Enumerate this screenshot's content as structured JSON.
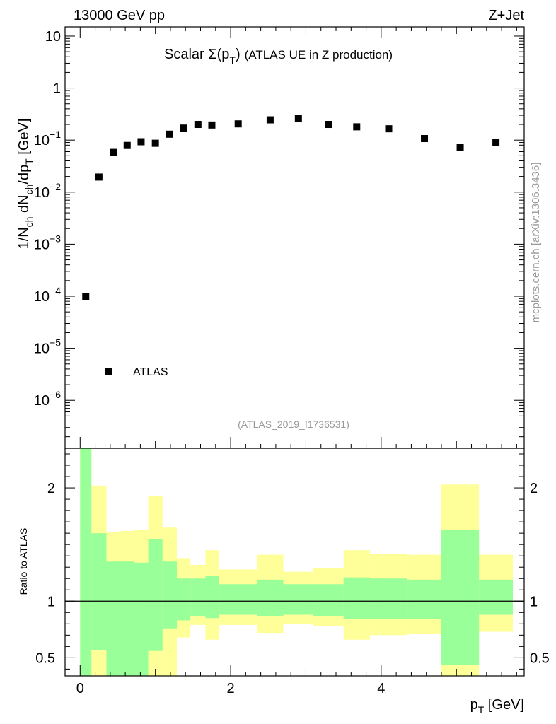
{
  "header": {
    "left": "13000 GeV pp",
    "right": "Z+Jet"
  },
  "watermark": "mcplots.cern.ch [arXiv:1306.3436]",
  "analysis_id": "(ATLAS_2019_I1736531)",
  "colors": {
    "band_inner": "#99ff99",
    "band_outer": "#ffff99",
    "marker": "#000000",
    "ratio_line": "#000000"
  },
  "chart_data": [
    {
      "type": "scatter",
      "title": {
        "main": "Scalar Σ(p",
        "sub": "T",
        "close": ")",
        "rest": "(ATLAS UE in Z production)"
      },
      "ylabel": {
        "t1": "1/N",
        "s1": "ch",
        "t2": " dN",
        "s2": "ch",
        "t3": "/dp",
        "s3": "T",
        "t4": " [GeV]"
      },
      "yscale": "log",
      "ylim": [
        1.2e-07,
        15
      ],
      "xlim": [
        -0.2,
        5.9
      ],
      "ytick_major": [
        {
          "v": 1e-06,
          "base": "10",
          "exp": "−6"
        },
        {
          "v": 1e-05,
          "base": "10",
          "exp": "−5"
        },
        {
          "v": 0.0001,
          "base": "10",
          "exp": "−4"
        },
        {
          "v": 0.001,
          "base": "10",
          "exp": "−3"
        },
        {
          "v": 0.01,
          "base": "10",
          "exp": "−2"
        },
        {
          "v": 0.1,
          "base": "10",
          "exp": "−1"
        },
        {
          "v": 1,
          "base": "1",
          "exp": ""
        },
        {
          "v": 10,
          "base": "10",
          "exp": ""
        }
      ],
      "legend": {
        "label": "ATLAS",
        "position": "lower-left"
      },
      "series": [
        {
          "name": "ATLAS",
          "x": [
            0.075,
            0.25,
            0.44,
            0.625,
            0.81,
            1.0,
            1.19,
            1.375,
            1.565,
            1.75,
            2.1,
            2.525,
            2.9,
            3.3,
            3.675,
            4.1,
            4.575,
            5.05,
            5.525
          ],
          "xerr": [
            0.075,
            0.1,
            0.09,
            0.095,
            0.095,
            0.095,
            0.095,
            0.09,
            0.1,
            0.09,
            0.25,
            0.175,
            0.2,
            0.2,
            0.175,
            0.25,
            0.225,
            0.25,
            0.225
          ],
          "y": [
            0.0001,
            0.0195,
            0.058,
            0.079,
            0.093,
            0.087,
            0.13,
            0.17,
            0.2,
            0.195,
            0.205,
            0.245,
            0.26,
            0.2,
            0.18,
            0.165,
            0.107,
            0.073,
            0.09
          ]
        }
      ]
    },
    {
      "type": "area",
      "ylabel": "Ratio to ATLAS",
      "xlabel": {
        "main": "p",
        "sub": "T",
        "rest": " [GeV]"
      },
      "xlim": [
        -0.2,
        5.9
      ],
      "ylim": [
        0.34,
        2.35
      ],
      "xticks": [
        0,
        2,
        4
      ],
      "yticks": [
        0.5,
        1,
        2
      ],
      "reference_line": 1,
      "bins": {
        "lo": [
          0.0,
          0.15,
          0.35,
          0.53,
          0.72,
          0.905,
          1.095,
          1.285,
          1.465,
          1.665,
          1.85,
          2.35,
          2.7,
          3.1,
          3.5,
          3.85,
          4.35,
          4.8,
          5.3
        ],
        "hi": [
          0.15,
          0.35,
          0.53,
          0.72,
          0.905,
          1.095,
          1.285,
          1.465,
          1.665,
          1.85,
          2.35,
          2.7,
          3.1,
          3.5,
          3.85,
          4.35,
          4.8,
          5.3,
          5.75
        ],
        "green_up": [
          2.35,
          1.6,
          1.35,
          1.35,
          1.34,
          1.55,
          1.35,
          1.2,
          1.2,
          1.22,
          1.15,
          1.19,
          1.15,
          1.15,
          1.21,
          1.2,
          1.19,
          1.63,
          1.19
        ],
        "green_dn": [
          0.34,
          0.57,
          0.34,
          0.34,
          0.34,
          0.56,
          0.76,
          0.83,
          0.87,
          0.85,
          0.88,
          0.87,
          0.88,
          0.87,
          0.84,
          0.84,
          0.84,
          0.44,
          0.88
        ],
        "yellow_up": [
          2.35,
          2.02,
          1.61,
          1.62,
          1.63,
          1.93,
          1.65,
          1.38,
          1.32,
          1.45,
          1.28,
          1.41,
          1.26,
          1.29,
          1.45,
          1.42,
          1.41,
          2.03,
          1.41
        ],
        "yellow_dn": [
          0.34,
          0.34,
          0.34,
          0.34,
          0.34,
          0.34,
          0.34,
          0.68,
          0.79,
          0.66,
          0.79,
          0.72,
          0.8,
          0.78,
          0.66,
          0.7,
          0.71,
          0.34,
          0.73
        ]
      }
    }
  ]
}
